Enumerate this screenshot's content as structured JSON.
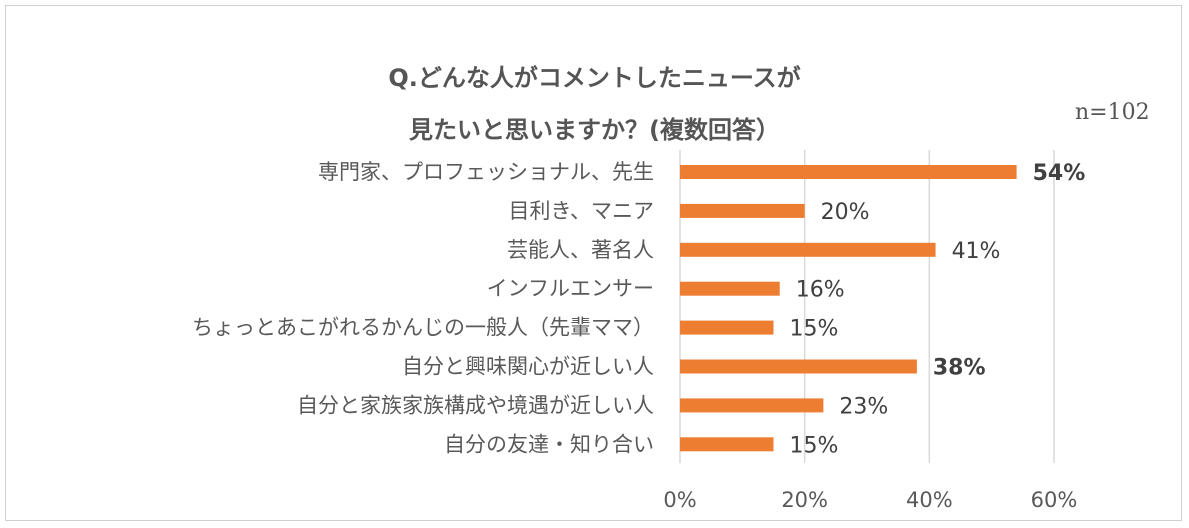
{
  "chart_data": {
    "type": "bar",
    "orientation": "horizontal",
    "title_line1": "Q.どんな人がコメントしたニュースが",
    "title_line2": "見たいと思いますか？(複数回答）",
    "note": "n=102",
    "categories": [
      "専門家、プロフェッショナル、先生",
      "目利き、マニア",
      "芸能人、著名人",
      "インフルエンサー",
      "ちょっとあこがれるかんじの一般人（先輩ママ）",
      "自分と興味関心が近しい人",
      "自分と家族家族構成や境遇が近しい人",
      "自分の友達・知り合い"
    ],
    "values": [
      54,
      20,
      41,
      16,
      15,
      38,
      23,
      15
    ],
    "value_labels": [
      "54%",
      "20%",
      "41%",
      "16%",
      "15%",
      "38%",
      "23%",
      "15%"
    ],
    "bold_labels": [
      true,
      false,
      false,
      false,
      false,
      true,
      false,
      false
    ],
    "xlim": [
      0,
      60
    ],
    "xticks": [
      0,
      20,
      40,
      60
    ],
    "xtick_labels": [
      "0%",
      "20%",
      "40%",
      "60%"
    ],
    "grid": true,
    "bar_color": "#ed7d31",
    "grid_color": "#d9d9d9"
  }
}
